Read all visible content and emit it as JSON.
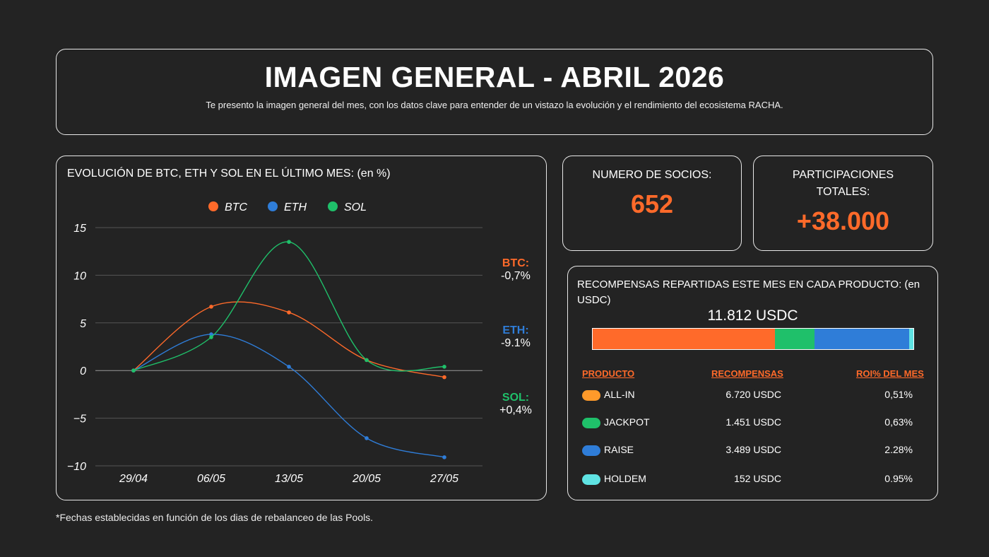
{
  "header": {
    "title": "IMAGEN GENERAL - ABRIL 2026",
    "subtitle": "Te presento la imagen general del mes, con los datos clave para entender de un vistazo la evolución y el rendimiento del ecosistema RACHA."
  },
  "chart_data": {
    "type": "line",
    "title": "EVOLUCIÓN DE BTC, ETH Y SOL EN EL ÚLTIMO MES: (en %)",
    "categories": [
      "29/04",
      "06/05",
      "13/05",
      "20/05",
      "27/05"
    ],
    "ylim": [
      -10,
      15
    ],
    "yticks": [
      15,
      10,
      5,
      0,
      -5,
      -10
    ],
    "ytick_labels": [
      "15",
      "10",
      "5",
      "0",
      "−5",
      "−10"
    ],
    "grid": true,
    "legend": "top-center",
    "series": [
      {
        "name": "BTC",
        "color": "#ff6a2a",
        "values": [
          0,
          6.7,
          6.1,
          1.1,
          -0.7
        ]
      },
      {
        "name": "ETH",
        "color": "#2f7dd8",
        "values": [
          0,
          3.8,
          0.4,
          -7.1,
          -9.1
        ]
      },
      {
        "name": "SOL",
        "color": "#1fc06a",
        "values": [
          0,
          3.5,
          13.5,
          1.1,
          0.4
        ]
      }
    ]
  },
  "side_labels": [
    {
      "name": "BTC:",
      "value": "-0,7%",
      "color": "#ff6a2a"
    },
    {
      "name": "ETH:",
      "value": "-9.1%",
      "color": "#2f7dd8"
    },
    {
      "name": "SOL:",
      "value": "+0,4%",
      "color": "#1fc06a"
    }
  ],
  "stats": {
    "socios": {
      "label": "NUMERO DE SOCIOS:",
      "value": "652"
    },
    "participaciones": {
      "label": "PARTICIPACIONES TOTALES:",
      "value": "+38.000"
    }
  },
  "rewards": {
    "title": "RECOMPENSAS REPARTIDAS ESTE MES EN CADA PRODUCTO: (en USDC)",
    "total": "11.812 USDC",
    "headers": {
      "product": "PRODUCTO",
      "rewards": "RECOMPENSAS",
      "roi": "ROI% DEL MES"
    },
    "bar": [
      {
        "name": "ALL-IN",
        "value": 6720,
        "color": "#ff6a2a"
      },
      {
        "name": "JACKPOT",
        "value": 1451,
        "color": "#1fc06a"
      },
      {
        "name": "RAISE",
        "value": 3489,
        "color": "#2f7dd8"
      },
      {
        "name": "HOLDEM",
        "value": 152,
        "color": "#5fe3e3"
      }
    ],
    "rows": [
      {
        "name": "ALL-IN",
        "amount": "6.720 USDC",
        "roi": "0,51%",
        "color": "#ff9a2a"
      },
      {
        "name": "JACKPOT",
        "amount": "1.451 USDC",
        "roi": "0,63%",
        "color": "#1fc06a"
      },
      {
        "name": "RAISE",
        "amount": "3.489 USDC",
        "roi": "2.28%",
        "color": "#2f7dd8"
      },
      {
        "name": "HOLDEM",
        "amount": "152 USDC",
        "roi": "0.95%",
        "color": "#5fe3e3"
      }
    ]
  },
  "footnote": "*Fechas establecidas en función de los dias de rebalanceo de las Pools."
}
